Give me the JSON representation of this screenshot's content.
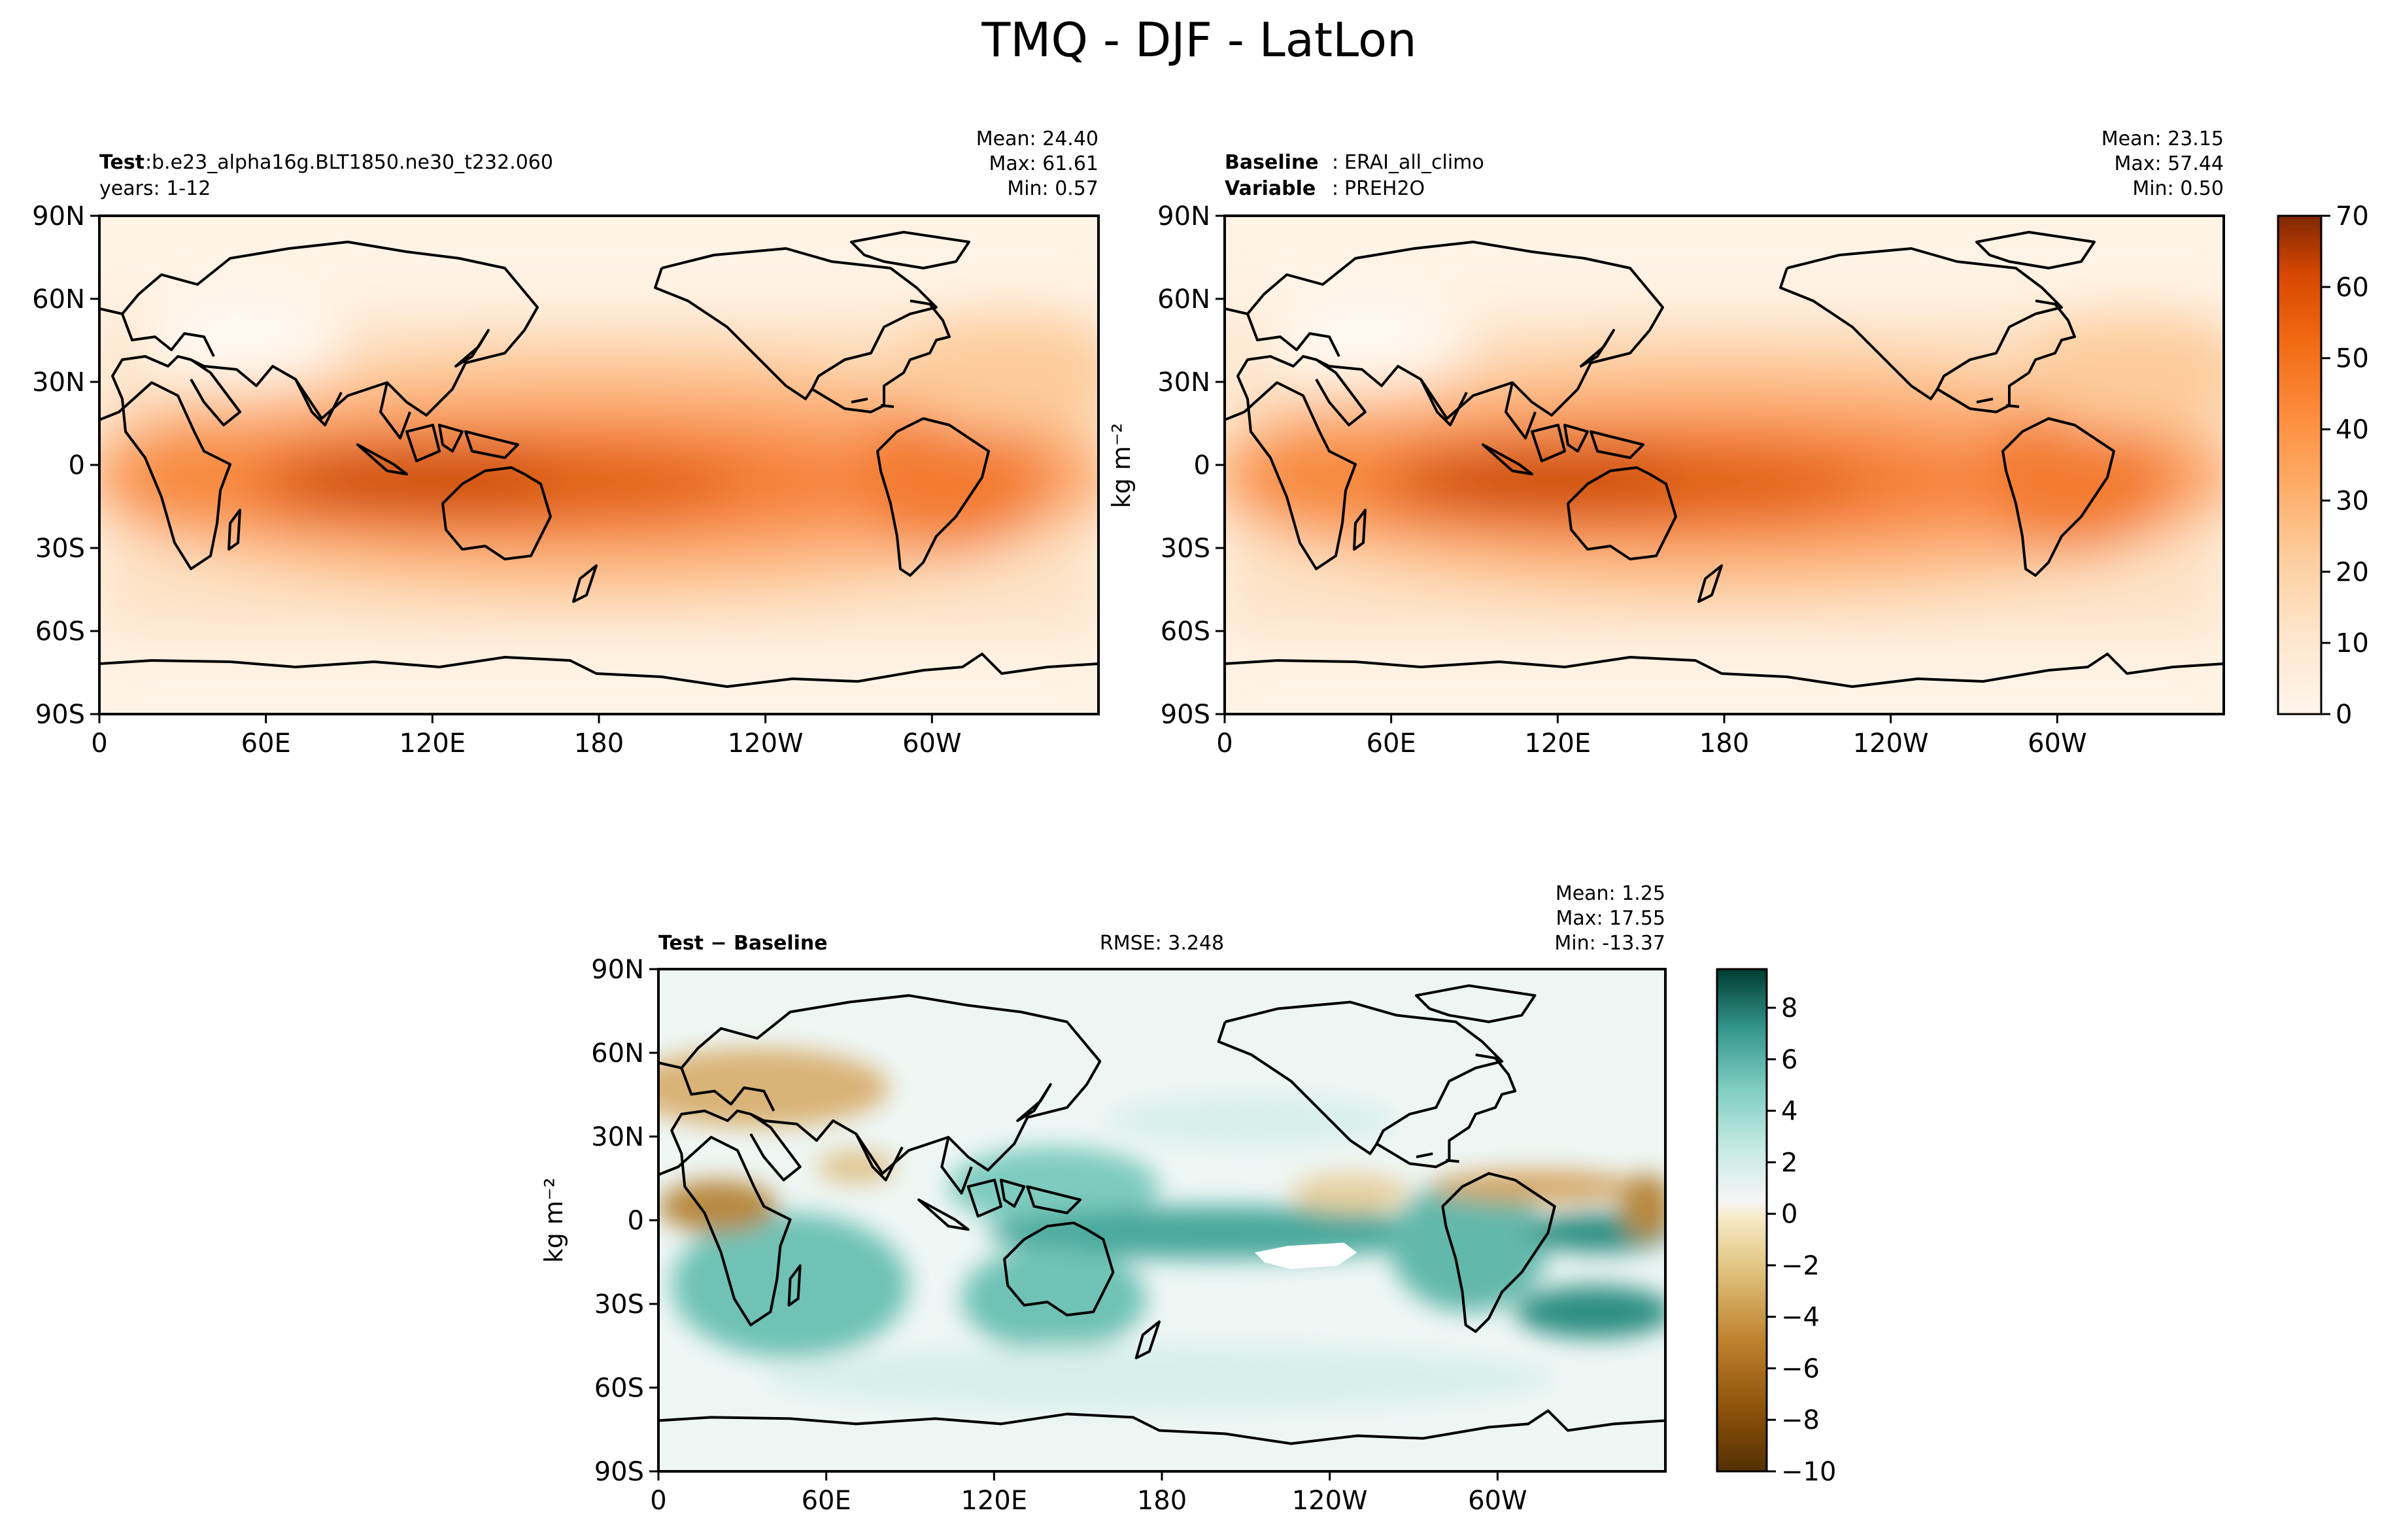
{
  "figure": {
    "suptitle": "TMQ - DJF - LatLon",
    "colorbar_label": "kg m⁻²"
  },
  "panels": {
    "test": {
      "label": "Test",
      "name": "b.e23_alpha16g.BLT1850.ne30_t232.060",
      "years": "years: 1-12",
      "mean": "Mean: 24.40",
      "max": "Max: 61.61",
      "min": "Min:  0.57"
    },
    "baseline": {
      "label": "Baseline",
      "name": "ERAI_all_climo",
      "variable_label": "Variable",
      "variable": "PREH2O",
      "mean": "Mean: 23.15",
      "max": "Max: 57.44",
      "min": "Min:  0.50"
    },
    "diff": {
      "label": "Test − Baseline",
      "rmse": "RMSE: 3.248",
      "mean": "Mean:  1.25",
      "max": "Max: 17.55",
      "min": "Min: -13.37"
    }
  },
  "chart_data": [
    {
      "type": "heatmap",
      "title": "Test: b.e23_alpha16g.BLT1850.ne30_t232.060",
      "variable": "TMQ",
      "season": "DJF",
      "units": "kg m-2",
      "xlabel": "",
      "ylabel": "",
      "xticks": [
        "0",
        "60E",
        "120E",
        "180",
        "120W",
        "60W"
      ],
      "yticks": [
        "90N",
        "60N",
        "30N",
        "0",
        "30S",
        "60S",
        "90S"
      ],
      "stats": {
        "mean": 24.4,
        "max": 61.61,
        "min": 0.57
      },
      "colorbar": {
        "min": 0,
        "max": 70,
        "ticks": [
          0,
          10,
          20,
          30,
          40,
          50,
          60,
          70
        ],
        "cmap": "Oranges"
      }
    },
    {
      "type": "heatmap",
      "title": "Baseline: ERAI_all_climo",
      "variable": "PREH2O",
      "units": "kg m-2",
      "xticks": [
        "0",
        "60E",
        "120E",
        "180",
        "120W",
        "60W"
      ],
      "yticks": [
        "90N",
        "60N",
        "30N",
        "0",
        "30S",
        "60S",
        "90S"
      ],
      "stats": {
        "mean": 23.15,
        "max": 57.44,
        "min": 0.5
      },
      "colorbar": {
        "min": 0,
        "max": 70,
        "ticks": [
          0,
          10,
          20,
          30,
          40,
          50,
          60,
          70
        ],
        "cmap": "Oranges"
      }
    },
    {
      "type": "heatmap",
      "title": "Test - Baseline",
      "units": "kg m-2",
      "rmse": 3.248,
      "xticks": [
        "0",
        "60E",
        "120E",
        "180",
        "120W",
        "60W"
      ],
      "yticks": [
        "90N",
        "60N",
        "30N",
        "0",
        "30S",
        "60S",
        "90S"
      ],
      "stats": {
        "mean": 1.25,
        "max": 17.55,
        "min": -13.37
      },
      "colorbar": {
        "min": -10,
        "max": 9.5,
        "ticks": [
          -10,
          -8,
          -6,
          -4,
          -2,
          0,
          2,
          4,
          6,
          8
        ],
        "tick_labels": [
          "−10",
          "−8",
          "−6",
          "−4",
          "−2",
          "0",
          "2",
          "4",
          "6",
          "8"
        ],
        "cmap": "BrBG"
      }
    }
  ]
}
